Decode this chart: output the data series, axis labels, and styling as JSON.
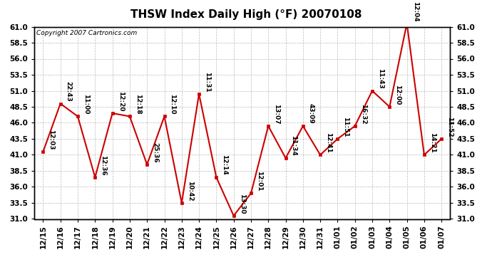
{
  "title": "THSW Index Daily High (°F) 20070108",
  "copyright": "Copyright 2007 Cartronics.com",
  "x_labels": [
    "12/15",
    "12/16",
    "12/17",
    "12/18",
    "12/19",
    "12/20",
    "12/21",
    "12/22",
    "12/23",
    "12/24",
    "12/25",
    "12/26",
    "12/27",
    "12/28",
    "12/29",
    "12/30",
    "12/31",
    "01/01",
    "01/02",
    "01/03",
    "01/04",
    "01/05",
    "01/06",
    "01/07"
  ],
  "y_values": [
    41.5,
    49.0,
    47.0,
    37.5,
    47.5,
    47.0,
    39.5,
    47.0,
    33.5,
    50.5,
    37.5,
    31.5,
    35.0,
    45.5,
    40.5,
    45.5,
    41.0,
    43.5,
    45.5,
    51.0,
    48.5,
    61.5,
    41.0,
    43.5
  ],
  "point_labels": [
    "12:03",
    "22:43",
    "11:00",
    "12:36",
    "12:20",
    "12:18",
    "25:36",
    "12:10",
    "10:42",
    "11:31",
    "12:14",
    "13:30",
    "12:01",
    "13:07",
    "11:34",
    "43:09",
    "12:41",
    "11:51",
    "16:32",
    "11:43",
    "12:00",
    "12:04",
    "14:21",
    "11:52"
  ],
  "ylim": [
    31.0,
    61.0
  ],
  "yticks": [
    31.0,
    33.5,
    36.0,
    38.5,
    41.0,
    43.5,
    46.0,
    48.5,
    51.0,
    53.5,
    56.0,
    58.5,
    61.0
  ],
  "line_color": "#cc0000",
  "marker_color": "#cc0000",
  "background_color": "#ffffff",
  "grid_color": "#aaaaaa",
  "title_fontsize": 11,
  "label_fontsize": 6.5,
  "tick_fontsize": 7.5,
  "copyright_fontsize": 6.5
}
